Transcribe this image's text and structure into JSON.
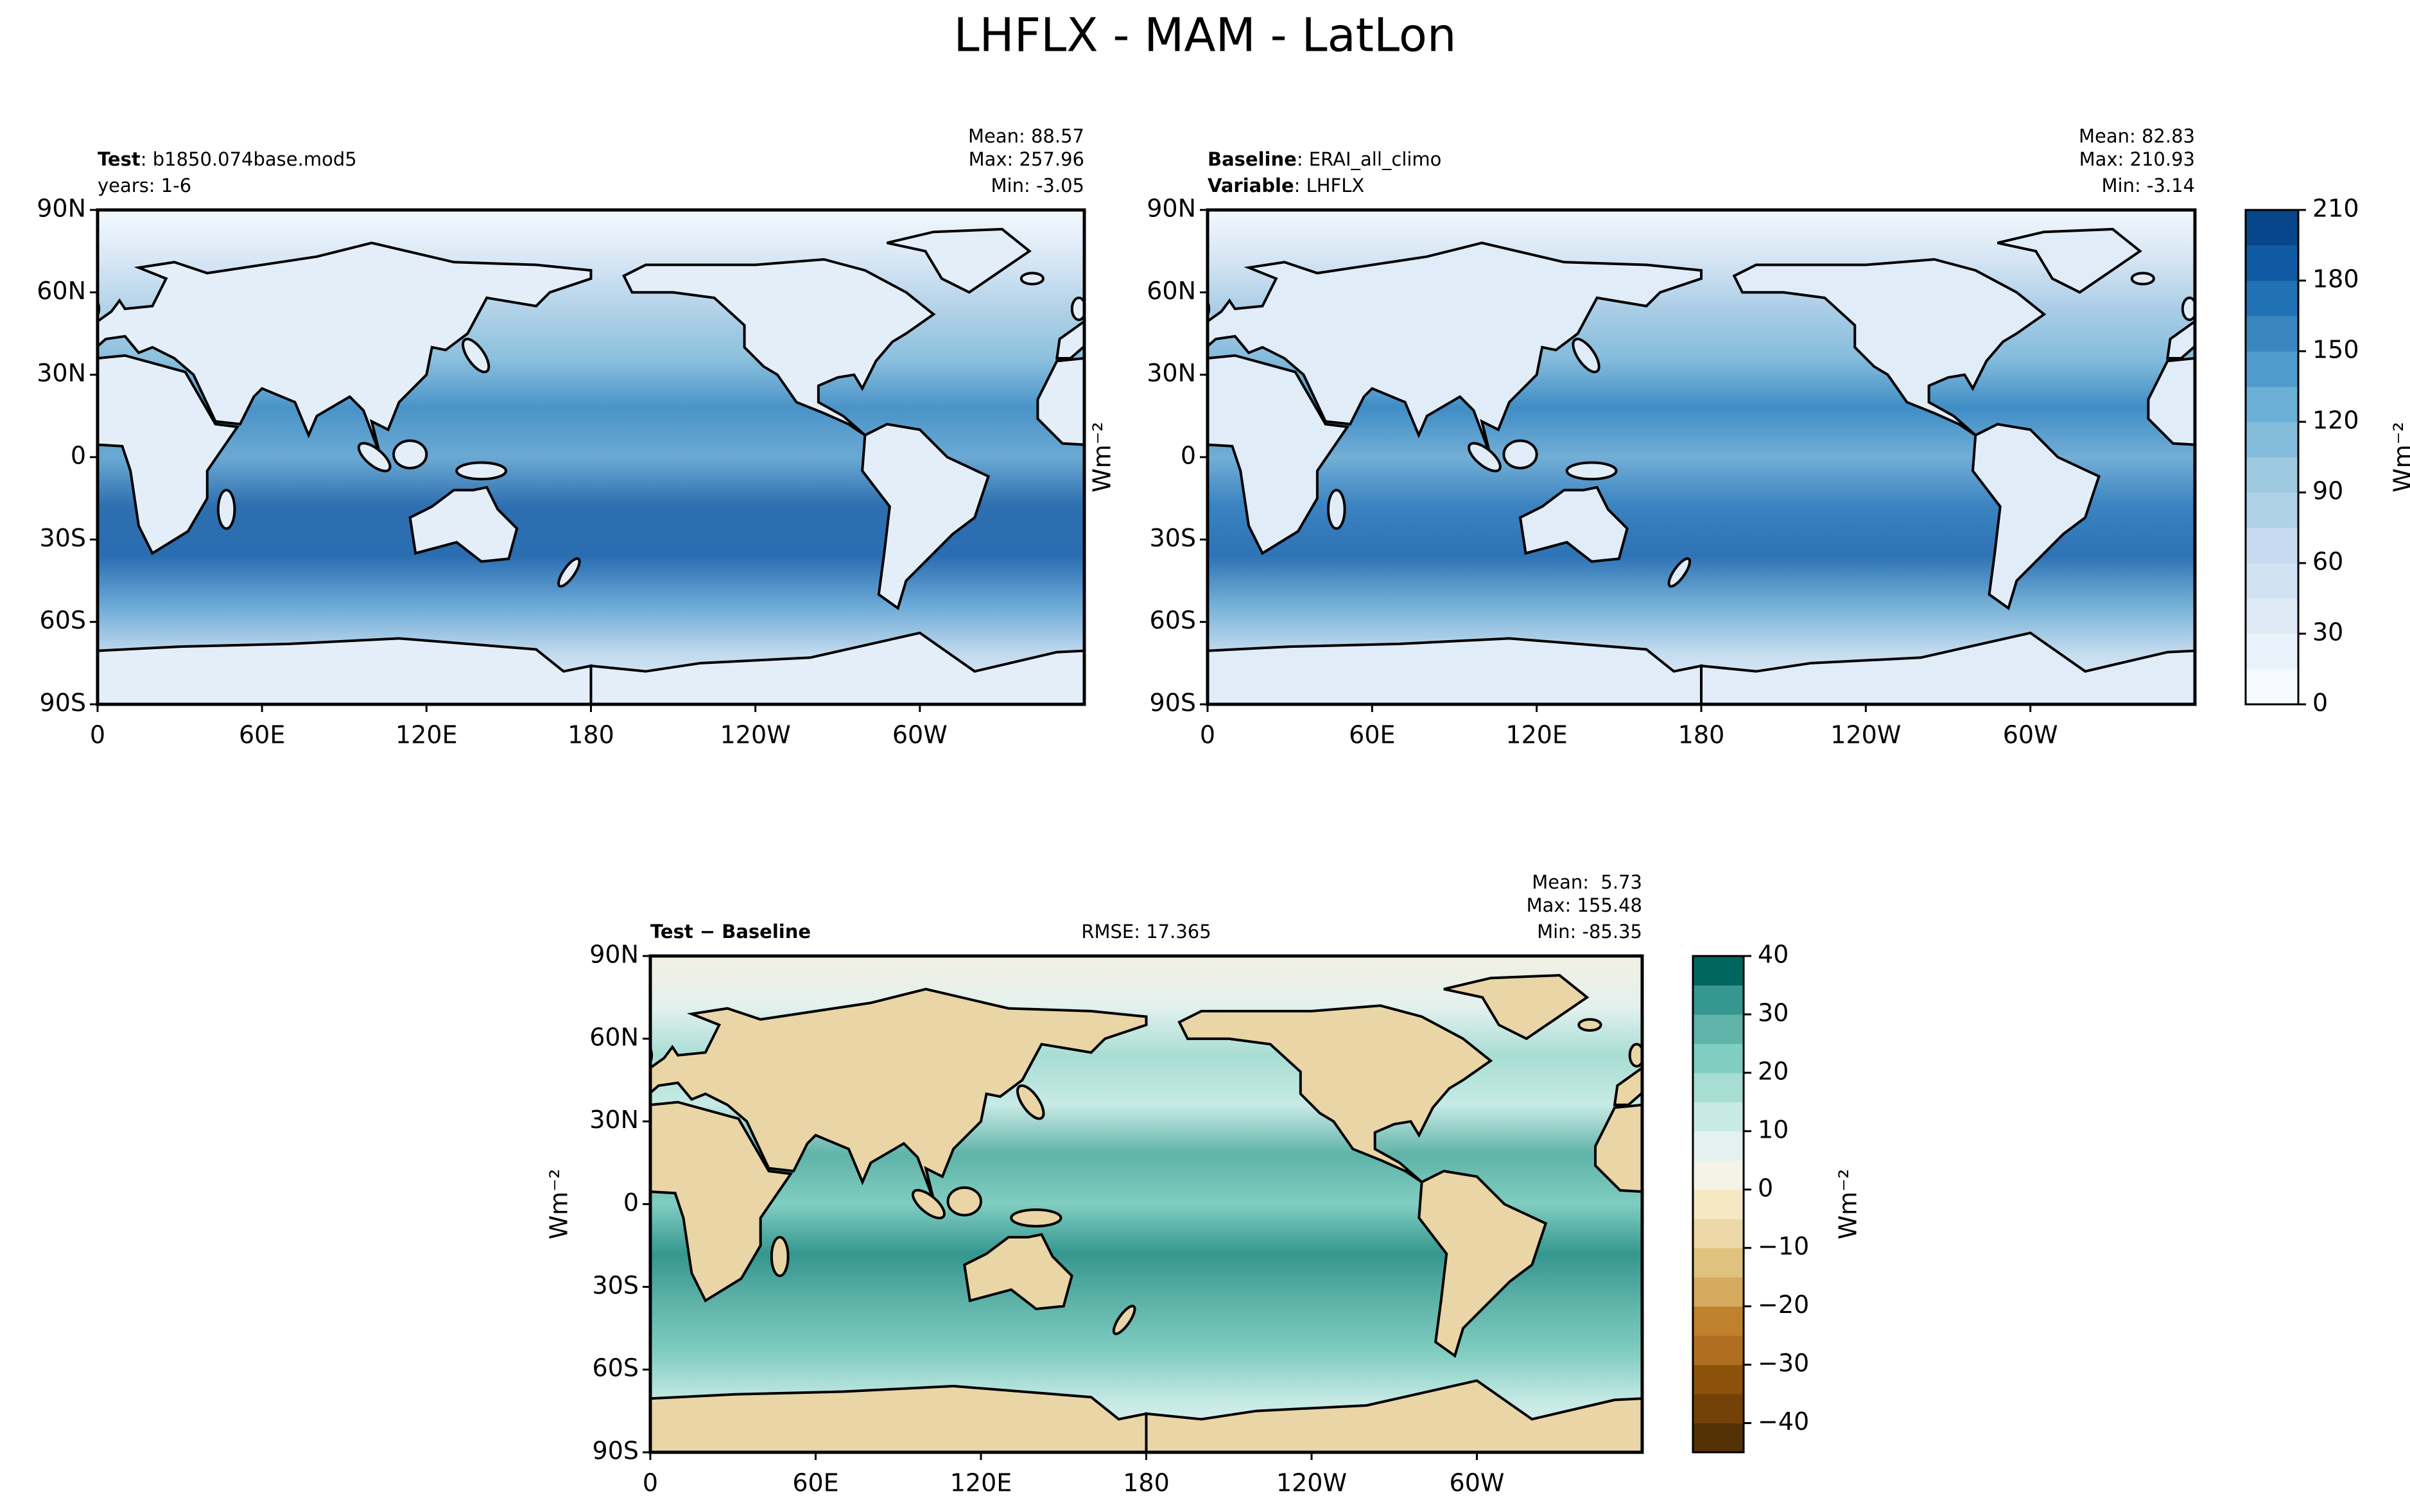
{
  "suptitle": "LHFLX - MAM - LatLon",
  "chart_data": [
    {
      "type": "map",
      "title_lines": [
        {
          "bold": "Test",
          "text": ": b1850.074base.mod5"
        },
        {
          "text": "years: 1-6"
        }
      ],
      "stats": [
        "Mean: 88.57",
        "Max: 257.96",
        "Min: -3.05"
      ],
      "side_label": "Wm⁻²",
      "xlim": [
        0,
        360
      ],
      "ylim": [
        -90,
        90
      ],
      "xticks": [
        0,
        {
          "value": 60,
          "label": "60E"
        },
        {
          "value": 120,
          "label": "120E"
        },
        180,
        {
          "value": 240,
          "label": "120W"
        },
        {
          "value": 300,
          "label": "60W"
        }
      ],
      "yticks": [
        {
          "value": 90,
          "label": "90N"
        },
        {
          "value": 60,
          "label": "60N"
        },
        {
          "value": 30,
          "label": "30N"
        },
        0,
        {
          "value": -30,
          "label": "30S"
        },
        {
          "value": -60,
          "label": "60S"
        },
        {
          "value": -90,
          "label": "90S"
        }
      ],
      "field_colors": [
        "#f3f8fd",
        "#d8e7f5",
        "#b2d2e8",
        "#8cc0dd",
        "#4a93c8",
        "#6ba9d3",
        "#2d6fb0",
        "#2a6db1",
        "#6ba9d6",
        "#c3dbee",
        "#e7f0fa"
      ],
      "land_color": "#e4eef8"
    },
    {
      "type": "map",
      "title_lines": [
        {
          "bold": "Baseline",
          "text": ": ERAI_all_climo"
        },
        {
          "bold": "Variable",
          "text": ": LHFLX"
        }
      ],
      "stats": [
        "Mean: 82.83",
        "Max: 210.93",
        "Min: -3.14"
      ],
      "xlim": [
        0,
        360
      ],
      "ylim": [
        -90,
        90
      ],
      "xticks": [
        0,
        {
          "value": 60,
          "label": "60E"
        },
        {
          "value": 120,
          "label": "120E"
        },
        180,
        {
          "value": 240,
          "label": "120W"
        },
        {
          "value": 300,
          "label": "60W"
        }
      ],
      "yticks": [
        {
          "value": 90,
          "label": "90N"
        },
        {
          "value": 60,
          "label": "60N"
        },
        {
          "value": 30,
          "label": "30N"
        },
        0,
        {
          "value": -30,
          "label": "30S"
        },
        {
          "value": -60,
          "label": "60S"
        },
        {
          "value": -90,
          "label": "90S"
        }
      ],
      "field_colors": [
        "#f3f8fd",
        "#d5e5f4",
        "#aacde6",
        "#84bcdc",
        "#3f8dc5",
        "#73aed6",
        "#3a82c0",
        "#2e73b5",
        "#75b0d8",
        "#c7ddef",
        "#e8f1fa"
      ],
      "land_color": "#e0ecf7",
      "colorbar": {
        "lim": [
          0,
          210
        ],
        "ticks": [
          0,
          30,
          60,
          90,
          120,
          150,
          180,
          210
        ],
        "label": "Wm⁻²",
        "colors": [
          "#f7fbff",
          "#eaf3fb",
          "#deebf7",
          "#d0e2f2",
          "#c6dbef",
          "#b0d2e8",
          "#9ecae1",
          "#84bcdb",
          "#6baed6",
          "#4f9bcb",
          "#3a87c0",
          "#2171b5",
          "#0f5aa3",
          "#08468b"
        ]
      }
    },
    {
      "type": "map",
      "title_lines": [
        {
          "bold": "Test − Baseline"
        }
      ],
      "center_label": "RMSE: 17.365",
      "stats": [
        "Mean:  5.73",
        "Max: 155.48",
        "Min: -85.35"
      ],
      "ylabel": "Wm⁻²",
      "xlim": [
        0,
        360
      ],
      "ylim": [
        -90,
        90
      ],
      "xticks": [
        0,
        {
          "value": 60,
          "label": "60E"
        },
        {
          "value": 120,
          "label": "120E"
        },
        180,
        {
          "value": 240,
          "label": "120W"
        },
        {
          "value": 300,
          "label": "60W"
        }
      ],
      "yticks": [
        {
          "value": 90,
          "label": "90N"
        },
        {
          "value": 60,
          "label": "60N"
        },
        {
          "value": 30,
          "label": "30N"
        },
        0,
        {
          "value": -30,
          "label": "30S"
        },
        {
          "value": -60,
          "label": "60S"
        },
        {
          "value": -90,
          "label": "90S"
        }
      ],
      "field_colors": [
        "#f3efe2",
        "#e4f1ee",
        "#a8ddd4",
        "#c7eae5",
        "#5fb3a8",
        "#80cdc1",
        "#35978f",
        "#5fb3a8",
        "#80cdc1",
        "#c7eae5",
        "#e9f2f0"
      ],
      "land_color": "#e9d5a6",
      "colorbar": {
        "lim": [
          -45,
          40
        ],
        "ticks": [
          {
            "value": -40,
            "label": "−40"
          },
          {
            "value": -30,
            "label": "−30"
          },
          {
            "value": -20,
            "label": "−20"
          },
          {
            "value": -10,
            "label": "−10"
          },
          0,
          10,
          20,
          30,
          40
        ],
        "label": "Wm⁻²",
        "colors": [
          "#543005",
          "#744208",
          "#8c510a",
          "#b06f20",
          "#bf812d",
          "#d4aa5f",
          "#dfc27d",
          "#ecd7a6",
          "#f6e8c3",
          "#f5f2e6",
          "#e3f1ef",
          "#c7eae5",
          "#a8ddd4",
          "#80cdc1",
          "#5fb3a8",
          "#35978f",
          "#01665e"
        ]
      }
    }
  ]
}
